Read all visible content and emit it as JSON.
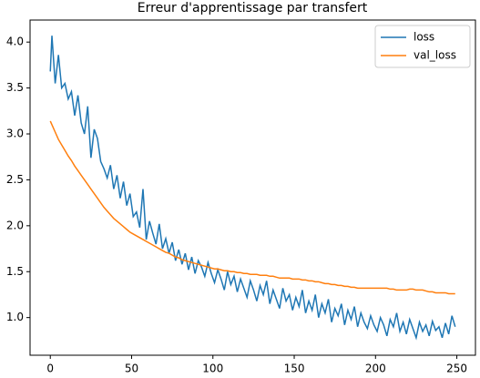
{
  "chart_data": {
    "type": "line",
    "title": "Erreur d'apprentissage par transfert",
    "x": [
      0,
      1,
      3,
      5,
      7,
      9,
      11,
      13,
      15,
      17,
      19,
      21,
      23,
      25,
      27,
      29,
      31,
      33,
      35,
      37,
      39,
      41,
      43,
      45,
      47,
      49,
      51,
      53,
      55,
      57,
      59,
      61,
      63,
      65,
      67,
      69,
      71,
      73,
      75,
      77,
      79,
      81,
      83,
      85,
      87,
      89,
      91,
      93,
      95,
      97,
      99,
      101,
      103,
      105,
      107,
      109,
      111,
      113,
      115,
      117,
      119,
      121,
      123,
      125,
      127,
      129,
      131,
      133,
      135,
      137,
      139,
      141,
      143,
      145,
      147,
      149,
      151,
      153,
      155,
      157,
      159,
      161,
      163,
      165,
      167,
      169,
      171,
      173,
      175,
      177,
      179,
      181,
      183,
      185,
      187,
      189,
      191,
      193,
      195,
      197,
      199,
      201,
      203,
      205,
      207,
      209,
      211,
      213,
      215,
      217,
      219,
      221,
      223,
      225,
      227,
      229,
      231,
      233,
      235,
      237,
      239,
      241,
      243,
      245,
      247,
      249
    ],
    "series": [
      {
        "name": "loss",
        "color": "#1f77b4",
        "values": [
          3.68,
          4.07,
          3.55,
          3.86,
          3.5,
          3.55,
          3.38,
          3.46,
          3.2,
          3.42,
          3.12,
          3.0,
          3.3,
          2.74,
          3.05,
          2.95,
          2.7,
          2.62,
          2.52,
          2.66,
          2.4,
          2.55,
          2.3,
          2.48,
          2.22,
          2.35,
          2.1,
          2.15,
          1.98,
          2.4,
          1.85,
          2.05,
          1.92,
          1.8,
          2.02,
          1.75,
          1.86,
          1.7,
          1.82,
          1.62,
          1.74,
          1.58,
          1.7,
          1.52,
          1.66,
          1.48,
          1.62,
          1.55,
          1.45,
          1.6,
          1.48,
          1.38,
          1.52,
          1.42,
          1.3,
          1.5,
          1.36,
          1.45,
          1.28,
          1.42,
          1.32,
          1.22,
          1.4,
          1.3,
          1.18,
          1.35,
          1.25,
          1.4,
          1.15,
          1.3,
          1.2,
          1.1,
          1.32,
          1.18,
          1.25,
          1.08,
          1.22,
          1.12,
          1.3,
          1.05,
          1.18,
          1.08,
          1.25,
          1.0,
          1.15,
          1.05,
          1.2,
          0.95,
          1.1,
          1.02,
          1.15,
          0.92,
          1.08,
          0.98,
          1.12,
          0.9,
          1.05,
          0.95,
          0.88,
          1.02,
          0.92,
          0.85,
          1.0,
          0.92,
          0.8,
          0.98,
          0.9,
          1.05,
          0.85,
          0.95,
          0.82,
          0.98,
          0.88,
          0.78,
          0.95,
          0.85,
          0.92,
          0.8,
          0.96,
          0.86,
          0.9,
          0.78,
          0.94,
          0.82,
          1.02,
          0.9
        ]
      },
      {
        "name": "val_loss",
        "color": "#ff7f0e",
        "values": [
          3.14,
          3.1,
          3.02,
          2.94,
          2.88,
          2.82,
          2.76,
          2.71,
          2.65,
          2.6,
          2.55,
          2.5,
          2.45,
          2.4,
          2.35,
          2.3,
          2.25,
          2.2,
          2.16,
          2.12,
          2.08,
          2.05,
          2.02,
          1.99,
          1.96,
          1.93,
          1.91,
          1.89,
          1.87,
          1.85,
          1.83,
          1.81,
          1.79,
          1.77,
          1.75,
          1.73,
          1.71,
          1.7,
          1.68,
          1.66,
          1.65,
          1.63,
          1.62,
          1.61,
          1.6,
          1.59,
          1.58,
          1.57,
          1.56,
          1.55,
          1.54,
          1.53,
          1.53,
          1.52,
          1.51,
          1.51,
          1.5,
          1.5,
          1.49,
          1.49,
          1.48,
          1.48,
          1.47,
          1.47,
          1.47,
          1.46,
          1.46,
          1.46,
          1.45,
          1.45,
          1.44,
          1.43,
          1.43,
          1.43,
          1.43,
          1.42,
          1.42,
          1.42,
          1.41,
          1.41,
          1.4,
          1.4,
          1.39,
          1.39,
          1.38,
          1.37,
          1.37,
          1.36,
          1.36,
          1.35,
          1.35,
          1.34,
          1.34,
          1.33,
          1.33,
          1.32,
          1.32,
          1.32,
          1.32,
          1.32,
          1.32,
          1.32,
          1.32,
          1.32,
          1.32,
          1.31,
          1.31,
          1.3,
          1.3,
          1.3,
          1.3,
          1.31,
          1.31,
          1.3,
          1.3,
          1.3,
          1.29,
          1.28,
          1.28,
          1.27,
          1.27,
          1.27,
          1.27,
          1.26,
          1.26,
          1.26
        ]
      }
    ],
    "xlim": [
      -12.45,
      261.45
    ],
    "xticks": [
      0,
      50,
      100,
      150,
      200,
      250
    ],
    "ylim": [
      0.59,
      4.24
    ],
    "yticks": [
      {
        "value": 1.0,
        "label": "1.0"
      },
      {
        "value": 1.5,
        "label": "1.5"
      },
      {
        "value": 2.0,
        "label": "2.0"
      },
      {
        "value": 2.5,
        "label": "2.5"
      },
      {
        "value": 3.0,
        "label": "3.0"
      },
      {
        "value": 3.5,
        "label": "3.5"
      },
      {
        "value": 4.0,
        "label": "4.0"
      }
    ],
    "grid": false,
    "legend": "upper right"
  }
}
